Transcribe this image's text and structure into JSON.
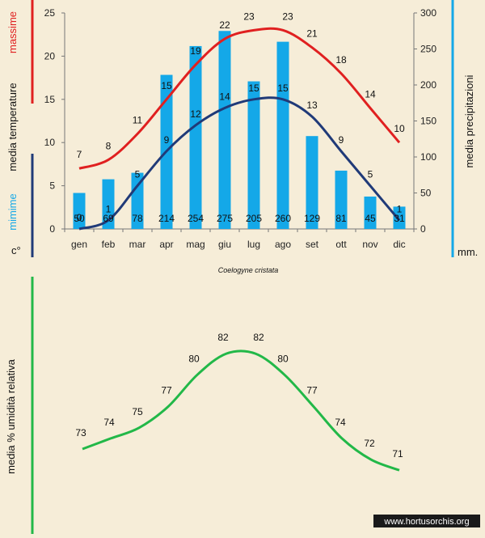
{
  "caption": "Coelogyne cristata",
  "watermark": "www.hortusorchis.org",
  "colors": {
    "max": "#e02020",
    "min": "#203a78",
    "precip": "#14a8e8",
    "humidity": "#22b848",
    "background": "#f6edd8"
  },
  "chart_data": [
    {
      "type": "bar",
      "categories": [
        "gen",
        "feb",
        "mar",
        "apr",
        "mag",
        "giu",
        "lug",
        "ago",
        "set",
        "ott",
        "nov",
        "dic"
      ],
      "left_axis": {
        "ticks": [
          "0",
          "5",
          "10",
          "15",
          "20",
          "25"
        ],
        "ylim": [
          0,
          25
        ],
        "unit": "c°"
      },
      "right_axis": {
        "ticks": [
          "0",
          "50",
          "100",
          "150",
          "200",
          "250",
          "300"
        ],
        "ylim": [
          0,
          300
        ],
        "unit": "mm."
      },
      "left_labels": {
        "max": "massime",
        "mid": "media  temperature",
        "min": "mimime"
      },
      "right_label": "media  precipitazioni",
      "series": [
        {
          "key": "precip",
          "axis": "right",
          "kind": "bar",
          "values": [
            50,
            69,
            78,
            214,
            254,
            275,
            205,
            260,
            129,
            81,
            45,
            31
          ]
        },
        {
          "key": "max",
          "axis": "left",
          "kind": "line",
          "values": [
            7,
            8,
            11,
            15,
            19,
            22,
            23,
            23,
            21,
            18,
            14,
            10
          ]
        },
        {
          "key": "min",
          "axis": "left",
          "kind": "line",
          "values": [
            0,
            1,
            5,
            9,
            12,
            14,
            15,
            15,
            13,
            9,
            5,
            1
          ]
        }
      ]
    },
    {
      "type": "line",
      "ylabel": "media %  umidità relativa",
      "series": [
        {
          "key": "humidity",
          "values": [
            73,
            74,
            75,
            77,
            80,
            82,
            82,
            80,
            77,
            74,
            72,
            71
          ]
        }
      ]
    }
  ]
}
